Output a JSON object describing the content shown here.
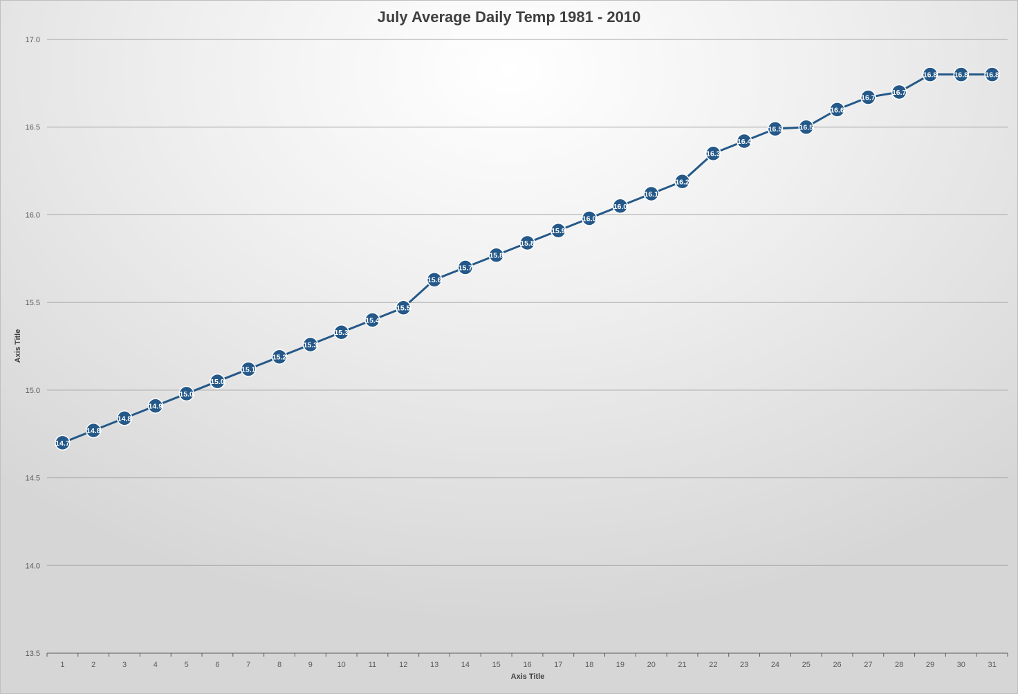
{
  "chart_data": {
    "type": "line",
    "title": "July Average Daily Temp 1981 - 2010",
    "xlabel": "Axis Title",
    "ylabel": "Axis Title",
    "categories": [
      "1",
      "2",
      "3",
      "4",
      "5",
      "6",
      "7",
      "8",
      "9",
      "10",
      "11",
      "12",
      "13",
      "14",
      "15",
      "16",
      "17",
      "18",
      "19",
      "20",
      "21",
      "22",
      "23",
      "24",
      "25",
      "26",
      "27",
      "28",
      "29",
      "30",
      "31"
    ],
    "series": [
      {
        "values": [
          14.7,
          14.77,
          14.84,
          14.91,
          14.98,
          15.05,
          15.12,
          15.19,
          15.26,
          15.33,
          15.4,
          15.47,
          15.63,
          15.7,
          15.77,
          15.84,
          15.91,
          15.98,
          16.05,
          16.12,
          16.19,
          16.35,
          16.42,
          16.49,
          16.5,
          16.6,
          16.67,
          16.7,
          16.8,
          16.8,
          16.8
        ],
        "labels": [
          "14.7",
          "14.8",
          "14.8",
          "14.9",
          "15.0",
          "15.0",
          "15.1",
          "15.2",
          "15.3",
          "15.3",
          "15.4",
          "15.5",
          "15.6",
          "15.7",
          "15.8",
          "15.8",
          "15.9",
          "16.0",
          "16.0",
          "16.1",
          "16.2",
          "16.3",
          "16.4",
          "16.5",
          "16.5",
          "16.6",
          "16.7",
          "16.7",
          "16.8",
          "16.8",
          "16.8"
        ],
        "color": "#245888"
      }
    ],
    "ylim": [
      13.5,
      17.0
    ],
    "yticks": [
      "13.5",
      "14.0",
      "14.5",
      "15.0",
      "15.5",
      "16.0",
      "16.5",
      "17.0"
    ],
    "grid": true,
    "legend": "none"
  }
}
